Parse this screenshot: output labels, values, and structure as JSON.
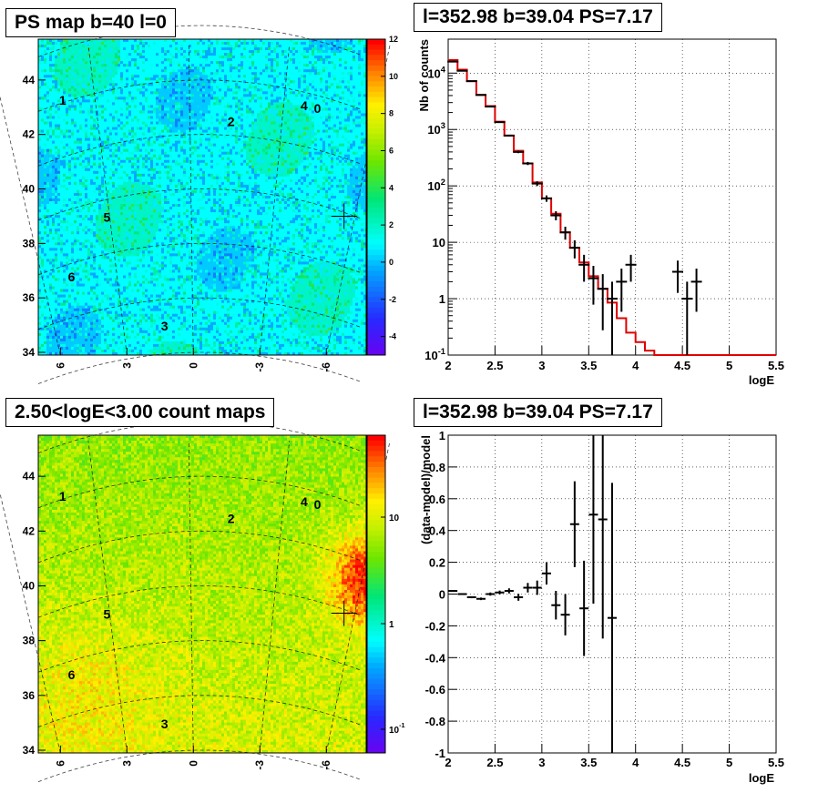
{
  "panels": {
    "tl_title": "PS map b=40 l=0",
    "tr_title": "l=352.98 b=39.04 PS=7.17",
    "bl_title": "2.50<logE<3.00 count maps",
    "br_title": "l=352.98 b=39.04 PS=7.17"
  },
  "chart_data": [
    {
      "type": "heatmap",
      "title": "PS map b=40 l=0",
      "x_ticks": [
        "6",
        "3",
        "0",
        "-3",
        "-6"
      ],
      "y_ticks": [
        "34",
        "36",
        "38",
        "40",
        "42",
        "44"
      ],
      "colorbar_ticks": [
        "-4",
        "-2",
        "0",
        "2",
        "4",
        "6",
        "8",
        "10",
        "12"
      ],
      "colorbar_range": [
        -5,
        12
      ],
      "source_labels": [
        {
          "label": "1",
          "l": 5.9,
          "b": 43.1
        },
        {
          "label": "2",
          "l": -1.7,
          "b": 42.3
        },
        {
          "label": "4",
          "l": -5.0,
          "b": 42.9
        },
        {
          "label": "0",
          "l": -5.6,
          "b": 42.8
        },
        {
          "label": "5",
          "l": 3.9,
          "b": 38.8
        },
        {
          "label": "6",
          "l": 5.5,
          "b": 36.6
        },
        {
          "label": "3",
          "l": 1.3,
          "b": 34.8
        }
      ],
      "marker": {
        "l": -6.8,
        "b": 39.0
      }
    },
    {
      "type": "line",
      "title": "l=352.98 b=39.04 PS=7.17",
      "xlabel": "logE",
      "ylabel": "Nb of counts",
      "yscale": "log",
      "xlim": [
        2,
        5.5
      ],
      "ylim": [
        0.1,
        40000
      ],
      "x_ticks": [
        "2",
        "2.5",
        "3",
        "3.5",
        "4",
        "4.5",
        "5",
        "5.5"
      ],
      "y_ticks": [
        "10",
        "1",
        "10^{-1}",
        "10^{2}",
        "10^{3}",
        "10^{4}"
      ],
      "grid": true,
      "series": [
        {
          "role": "model",
          "color": "#e00000",
          "bin_edges": [
            2.0,
            2.1,
            2.2,
            2.3,
            2.4,
            2.5,
            2.6,
            2.7,
            2.8,
            2.9,
            3.0,
            3.1,
            3.2,
            3.3,
            3.4,
            3.5,
            3.6,
            3.7,
            3.8,
            3.9,
            4.0,
            4.1,
            4.2,
            4.3,
            5.5
          ],
          "values": [
            17000,
            11500,
            7200,
            4100,
            2600,
            1380,
            780,
            420,
            250,
            115,
            60,
            32,
            15,
            8,
            4.4,
            2.5,
            1.5,
            0.85,
            0.45,
            0.25,
            0.17,
            0.12,
            0.1,
            0.1
          ]
        },
        {
          "role": "data",
          "color": "#000000",
          "points": [
            {
              "x": 2.05,
              "y": 16000
            },
            {
              "x": 2.15,
              "y": 11000
            },
            {
              "x": 2.25,
              "y": 7200
            },
            {
              "x": 2.35,
              "y": 4100
            },
            {
              "x": 2.45,
              "y": 2550
            },
            {
              "x": 2.55,
              "y": 1350
            },
            {
              "x": 2.65,
              "y": 780
            },
            {
              "x": 2.75,
              "y": 400
            },
            {
              "x": 2.85,
              "y": 250
            },
            {
              "x": 2.95,
              "y": 110
            },
            {
              "x": 3.05,
              "y": 60
            },
            {
              "x": 3.15,
              "y": 30
            },
            {
              "x": 3.25,
              "y": 15
            },
            {
              "x": 3.35,
              "y": 8
            },
            {
              "x": 3.45,
              "y": 4
            },
            {
              "x": 3.55,
              "y": 2.3
            },
            {
              "x": 3.65,
              "y": 1.5
            },
            {
              "x": 3.75,
              "y": 1
            },
            {
              "x": 3.85,
              "y": 2
            },
            {
              "x": 3.95,
              "y": 4
            },
            {
              "x": 4.45,
              "y": 3
            },
            {
              "x": 4.55,
              "y": 1
            },
            {
              "x": 4.65,
              "y": 2
            }
          ]
        }
      ]
    },
    {
      "type": "heatmap",
      "title": "2.50<logE<3.00 count maps",
      "x_ticks": [
        "6",
        "3",
        "0",
        "-3",
        "-6"
      ],
      "y_ticks": [
        "34",
        "36",
        "38",
        "40",
        "42",
        "44"
      ],
      "colorbar_ticks": [
        "10",
        "1",
        "10^{-1}"
      ],
      "colorbar_scale": "log",
      "source_labels": [
        {
          "label": "1",
          "l": 5.9,
          "b": 43.1
        },
        {
          "label": "2",
          "l": -1.7,
          "b": 42.3
        },
        {
          "label": "4",
          "l": -5.0,
          "b": 42.9
        },
        {
          "label": "0",
          "l": -5.6,
          "b": 42.8
        },
        {
          "label": "5",
          "l": 3.9,
          "b": 38.8
        },
        {
          "label": "6",
          "l": 5.5,
          "b": 36.6
        },
        {
          "label": "3",
          "l": 1.3,
          "b": 34.8
        }
      ],
      "marker": {
        "l": -6.8,
        "b": 39.0
      }
    },
    {
      "type": "scatter",
      "title": "l=352.98 b=39.04 PS=7.17",
      "xlabel": "logE",
      "ylabel": "(data-model)/model",
      "xlim": [
        2,
        5.5
      ],
      "ylim": [
        -1,
        1
      ],
      "x_ticks": [
        "2",
        "2.5",
        "3",
        "3.5",
        "4",
        "4.5",
        "5",
        "5.5"
      ],
      "y_ticks": [
        "-1",
        "-0.8",
        "-0.6",
        "-0.4",
        "-0.2",
        "0",
        "0.2",
        "0.4",
        "0.6",
        "0.8",
        "1"
      ],
      "grid": true,
      "points": [
        {
          "x": 2.05,
          "y": 0.02,
          "err": 0.005
        },
        {
          "x": 2.15,
          "y": 0.0,
          "err": 0.005
        },
        {
          "x": 2.25,
          "y": -0.02,
          "err": 0.006
        },
        {
          "x": 2.35,
          "y": -0.03,
          "err": 0.008
        },
        {
          "x": 2.45,
          "y": 0.0,
          "err": 0.01
        },
        {
          "x": 2.55,
          "y": 0.01,
          "err": 0.012
        },
        {
          "x": 2.65,
          "y": 0.02,
          "err": 0.016
        },
        {
          "x": 2.75,
          "y": -0.02,
          "err": 0.022
        },
        {
          "x": 2.85,
          "y": 0.04,
          "err": 0.03
        },
        {
          "x": 2.95,
          "y": 0.04,
          "err": 0.045
        },
        {
          "x": 3.05,
          "y": 0.13,
          "err": 0.07
        },
        {
          "x": 3.15,
          "y": -0.07,
          "err": 0.09
        },
        {
          "x": 3.25,
          "y": -0.13,
          "err": 0.13
        },
        {
          "x": 3.35,
          "y": 0.44,
          "err": 0.27
        },
        {
          "x": 3.45,
          "y": -0.09,
          "err": 0.3
        },
        {
          "x": 3.55,
          "y": 0.5,
          "err": 0.56
        },
        {
          "x": 3.65,
          "y": 0.47,
          "err": 0.75
        },
        {
          "x": 3.75,
          "y": -0.15,
          "err": 0.85
        }
      ]
    }
  ]
}
